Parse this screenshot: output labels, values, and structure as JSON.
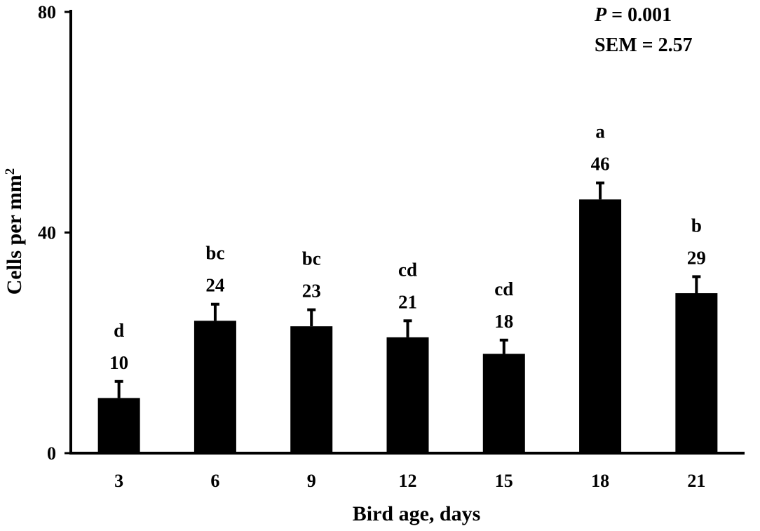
{
  "chart_data": {
    "type": "bar",
    "title": "",
    "xlabel": "Bird age, days",
    "ylabel": "Cells per mm",
    "ylabel_superscript": "2",
    "categories": [
      "3",
      "6",
      "9",
      "12",
      "15",
      "18",
      "21"
    ],
    "values": [
      10,
      24,
      23,
      21,
      18,
      46,
      29
    ],
    "value_labels": [
      "10",
      "24",
      "23",
      "21",
      "18",
      "46",
      "29"
    ],
    "letters": [
      "d",
      "bc",
      "bc",
      "cd",
      "cd",
      "a",
      "b"
    ],
    "error_upper": [
      13,
      27,
      26,
      24,
      20.5,
      49,
      32
    ],
    "ylim": [
      0,
      80
    ],
    "yticks": [
      0,
      40,
      80
    ],
    "ytick_labels": [
      "0",
      "40",
      "80"
    ],
    "bar_color": "#000000",
    "grid": false,
    "legend": "none",
    "annotations": {
      "p_symbol": "P",
      "p_value": " = 0.001",
      "sem": "SEM = 2.57"
    }
  }
}
